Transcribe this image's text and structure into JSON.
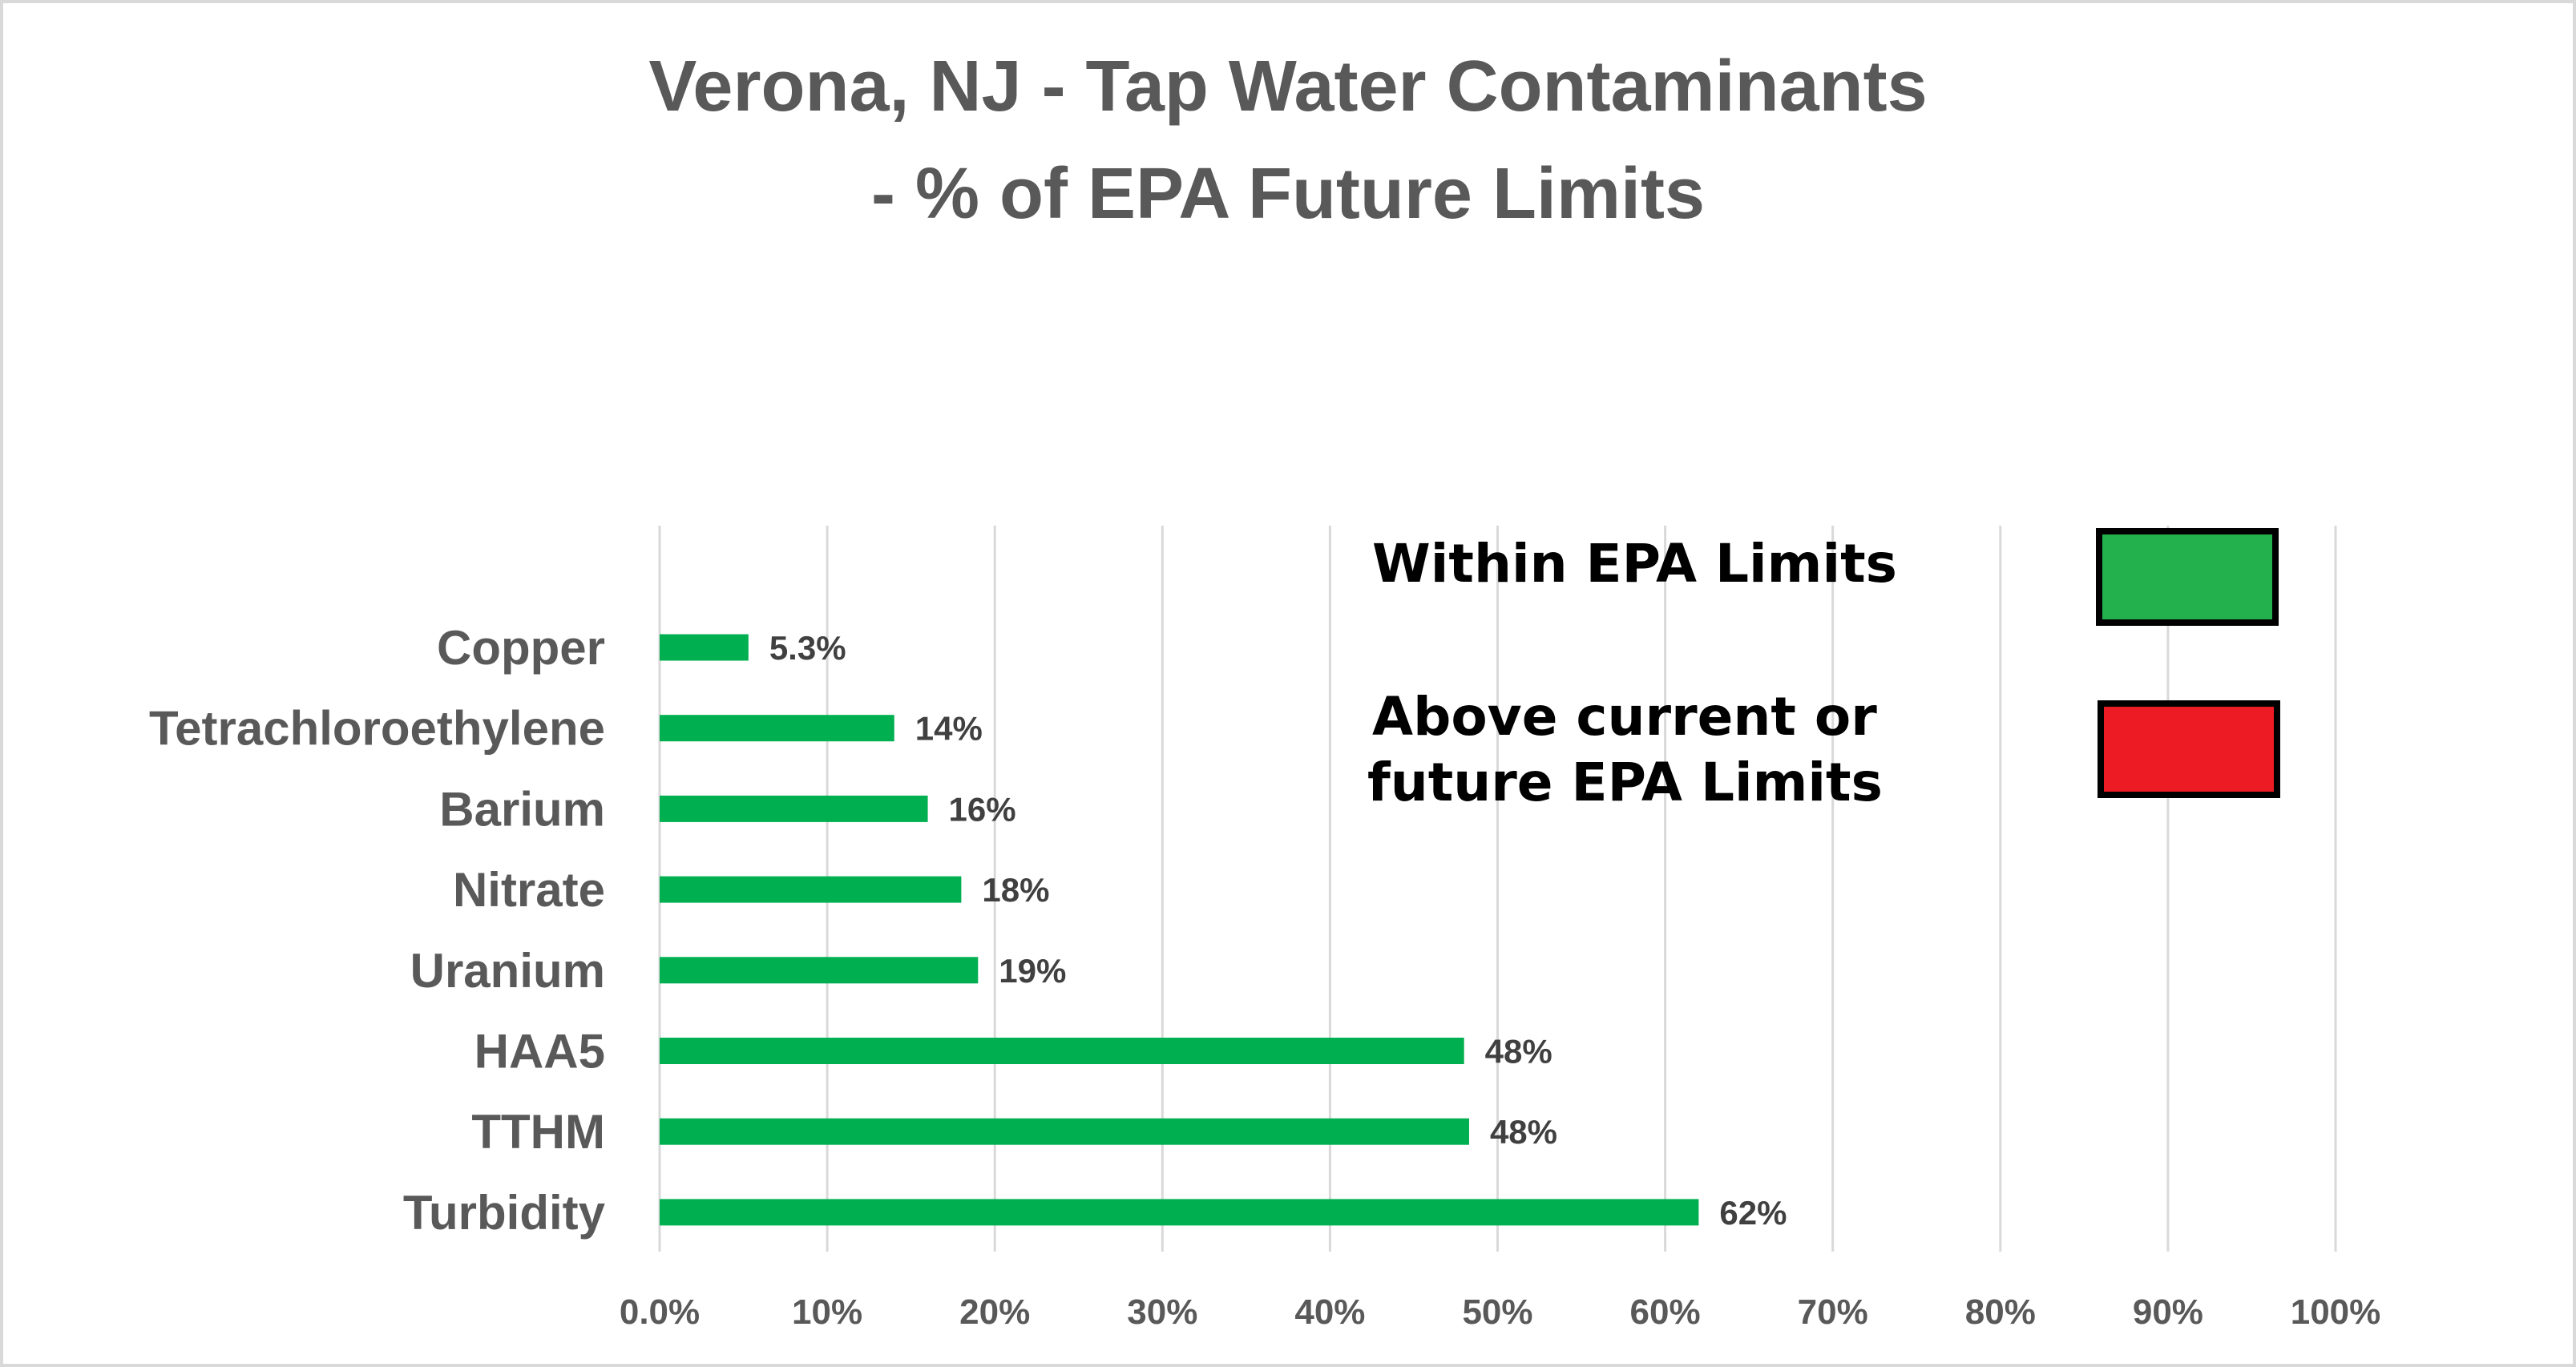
{
  "chart_data": {
    "type": "bar",
    "orientation": "horizontal",
    "title": "Verona, NJ - Tap Water Contaminants - % of EPA Future Limits",
    "title_lines": [
      "Verona, NJ - Tap Water Contaminants",
      "- % of EPA Future Limits"
    ],
    "categories": [
      "Copper",
      "Tetrachloroethylene",
      "Barium",
      "Nitrate",
      "Uranium",
      "HAA5",
      "TTHM",
      "Turbidity"
    ],
    "values": [
      5.3,
      14,
      16,
      18,
      19,
      48,
      48.3,
      62
    ],
    "data_labels": [
      "5.3%",
      "14%",
      "16%",
      "18%",
      "19%",
      "48%",
      "48%",
      "62%"
    ],
    "xlim": [
      0,
      100
    ],
    "x_ticks": [
      "0.0%",
      "10%",
      "20%",
      "30%",
      "40%",
      "50%",
      "60%",
      "70%",
      "80%",
      "90%",
      "100%"
    ],
    "xlabel": "",
    "ylabel": "",
    "grid": "vertical",
    "bar_color": "#00B050",
    "legend": {
      "placement": "top-right",
      "items": [
        {
          "label_lines": [
            "Within EPA Limits"
          ],
          "color": "#22B14C"
        },
        {
          "label_lines": [
            "Above current or",
            "future EPA Limits"
          ],
          "color": "#ED1C24"
        }
      ]
    }
  }
}
